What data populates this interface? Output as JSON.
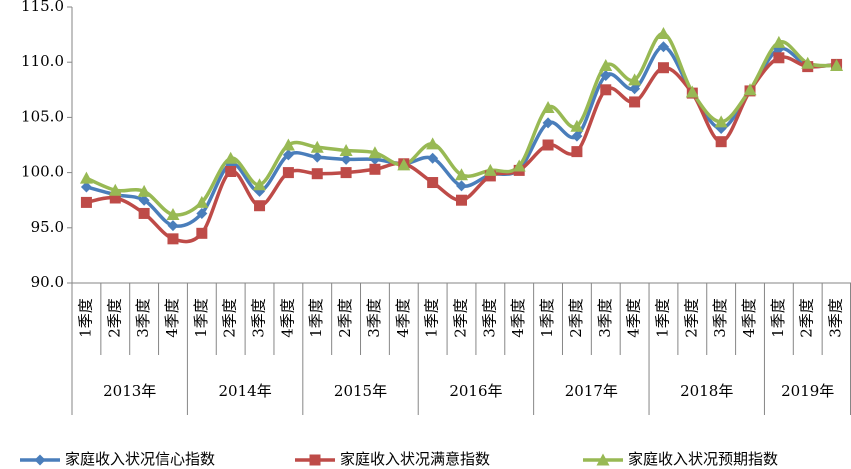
{
  "chart_data": {
    "type": "line",
    "years": [
      {
        "label": "2013年",
        "quarters": [
          "1季度",
          "2季度",
          "3季度",
          "4季度"
        ]
      },
      {
        "label": "2014年",
        "quarters": [
          "1季度",
          "2季度",
          "3季度",
          "4季度"
        ]
      },
      {
        "label": "2015年",
        "quarters": [
          "1季度",
          "2季度",
          "3季度",
          "4季度"
        ]
      },
      {
        "label": "2016年",
        "quarters": [
          "1季度",
          "2季度",
          "3季度",
          "4季度"
        ]
      },
      {
        "label": "2017年",
        "quarters": [
          "1季度",
          "2季度",
          "3季度",
          "4季度"
        ]
      },
      {
        "label": "2018年",
        "quarters": [
          "1季度",
          "2季度",
          "3季度",
          "4季度"
        ]
      },
      {
        "label": "2019年",
        "quarters": [
          "1季度",
          "2季度",
          "3季度"
        ]
      }
    ],
    "series": [
      {
        "name": "家庭收入状况信心指数",
        "color": "#4a7ebb",
        "marker": "diamond",
        "values": [
          98.7,
          98.0,
          97.5,
          95.2,
          96.3,
          100.8,
          98.3,
          101.6,
          101.4,
          101.2,
          101.2,
          100.8,
          101.3,
          98.8,
          99.8,
          100.3,
          104.5,
          103.3,
          108.8,
          107.6,
          111.4,
          107.2,
          104.0,
          107.4,
          111.2,
          109.7,
          109.8
        ]
      },
      {
        "name": "家庭收入状况满意指数",
        "color": "#be4b48",
        "marker": "square",
        "values": [
          97.3,
          97.7,
          96.3,
          94.0,
          94.5,
          100.1,
          97.0,
          100.0,
          99.9,
          100.0,
          100.3,
          100.8,
          99.1,
          97.5,
          99.7,
          100.2,
          102.5,
          101.9,
          107.5,
          106.4,
          109.5,
          107.2,
          102.8,
          107.4,
          110.4,
          109.6,
          109.8
        ]
      },
      {
        "name": "家庭收入状况预期指数",
        "color": "#98b954",
        "marker": "triangle",
        "values": [
          99.5,
          98.4,
          98.3,
          96.2,
          97.3,
          101.3,
          98.9,
          102.5,
          102.3,
          102.0,
          101.8,
          100.7,
          102.6,
          99.8,
          100.2,
          100.6,
          105.9,
          104.2,
          109.7,
          108.4,
          112.6,
          107.3,
          104.6,
          107.5,
          111.8,
          109.9,
          109.7
        ]
      }
    ],
    "ylim": [
      90,
      115
    ],
    "yticks": [
      {
        "value": 90,
        "label": "90.0"
      },
      {
        "value": 95,
        "label": "95.0"
      },
      {
        "value": 100,
        "label": "100.0"
      },
      {
        "value": 105,
        "label": "105.0"
      },
      {
        "value": 110,
        "label": "110.0"
      },
      {
        "value": 115,
        "label": "115.0"
      }
    ],
    "smooth": true,
    "grid": false
  }
}
